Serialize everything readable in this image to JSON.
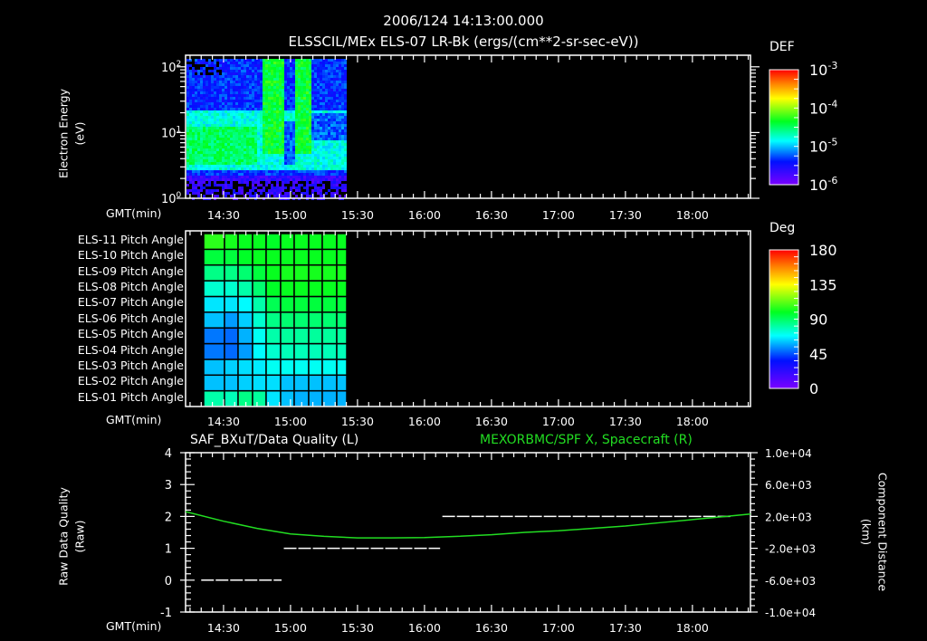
{
  "header": {
    "timestamp": "2006/124 14:13:00.000",
    "subtitle": "ELSSCIL/MEx ELS-07 LR-Bk  (ergs/(cm**2-sr-sec-eV))"
  },
  "time_axis": {
    "label": "GMT(min)",
    "ticks": [
      "14:30",
      "15:00",
      "15:30",
      "16:00",
      "16:30",
      "17:00",
      "17:30",
      "18:00"
    ],
    "start": "14:13",
    "end": "18:26"
  },
  "panel1": {
    "ylabel_line1": "Electron Energy",
    "ylabel_line2": "(eV)",
    "yticks": [
      "10^0",
      "10^1",
      "10^2"
    ],
    "colorbar": {
      "title": "DEF",
      "labels": [
        "10^-3",
        "10^-4",
        "10^-5",
        "10^-6"
      ]
    }
  },
  "panel2": {
    "rows": [
      "ELS-11 Pitch Angle",
      "ELS-10 Pitch Angle",
      "ELS-09 Pitch Angle",
      "ELS-08 Pitch Angle",
      "ELS-07 Pitch Angle",
      "ELS-06 Pitch Angle",
      "ELS-05 Pitch Angle",
      "ELS-04 Pitch Angle",
      "ELS-03 Pitch Angle",
      "ELS-02 Pitch Angle",
      "ELS-01 Pitch Angle"
    ],
    "colorbar": {
      "title": "Deg",
      "labels": [
        "180",
        "135",
        "90",
        "45",
        "0"
      ]
    }
  },
  "panel3": {
    "left_title": "SAF_BXuT/Data Quality (L)",
    "right_title": "MEXORBMC/SPF X, Spacecraft (R)",
    "left_ylabel_line1": "Raw Data Quality",
    "left_ylabel_line2": "(Raw)",
    "right_ylabel_line1": "Component Distance",
    "right_ylabel_line2": "(km)",
    "left_yticks": [
      "4",
      "3",
      "2",
      "1",
      "0",
      "-1"
    ],
    "right_yticks": [
      "1.0e+04",
      "6.0e+03",
      "2.0e+03",
      "-2.0e+03",
      "-6.0e+03",
      "-1.0e+04"
    ],
    "colors": {
      "quality": "#ffffff",
      "distance": "#22dd22"
    }
  },
  "chart_data": [
    {
      "type": "heatmap",
      "title": "ELSSCIL/MEx ELS-07 LR-Bk (ergs/(cm**2-sr-sec-eV))",
      "xlabel": "GMT(min)",
      "ylabel": "Electron Energy (eV)",
      "yscale": "log",
      "ylim": [
        1,
        150
      ],
      "x_range": [
        "14:13",
        "18:26"
      ],
      "data_extent": [
        "14:13",
        "15:24"
      ],
      "colorbar": {
        "label": "DEF",
        "scale": "log",
        "range": [
          1e-06,
          0.001
        ]
      },
      "features": [
        {
          "time": "14:13-14:45",
          "energy_eV": "3-20",
          "level": "~3e-5 (cyan/green)"
        },
        {
          "time": "14:48-14:56",
          "energy_eV": "5-150",
          "level": "~1e-4 (green)"
        },
        {
          "time": "15:03-15:08",
          "energy_eV": "5-150",
          "level": "~1e-4 (green)"
        },
        {
          "time": "15:10-15:24",
          "energy_eV": "3-10",
          "level": "~2e-5 (cyan)"
        }
      ]
    },
    {
      "type": "heatmap",
      "title": "ELS Pitch Angle",
      "xlabel": "GMT(min)",
      "categories": [
        "ELS-01",
        "ELS-02",
        "ELS-03",
        "ELS-04",
        "ELS-05",
        "ELS-06",
        "ELS-07",
        "ELS-08",
        "ELS-09",
        "ELS-10",
        "ELS-11"
      ],
      "colorbar": {
        "label": "Deg",
        "range": [
          0,
          180
        ]
      },
      "x_columns": [
        "14:21",
        "14:30",
        "14:37",
        "14:43",
        "14:49",
        "14:56",
        "15:02",
        "15:08",
        "15:15",
        "15:21"
      ],
      "values": [
        [
          80,
          78,
          85,
          82,
          65,
          60,
          58,
          58,
          58,
          58
        ],
        [
          60,
          60,
          62,
          64,
          64,
          60,
          60,
          60,
          60,
          60
        ],
        [
          60,
          62,
          64,
          66,
          70,
          70,
          70,
          70,
          70,
          70
        ],
        [
          50,
          48,
          55,
          68,
          75,
          78,
          78,
          78,
          78,
          78
        ],
        [
          50,
          48,
          58,
          70,
          80,
          82,
          82,
          82,
          82,
          82
        ],
        [
          60,
          55,
          62,
          75,
          85,
          88,
          88,
          88,
          88,
          88
        ],
        [
          65,
          65,
          68,
          80,
          92,
          95,
          95,
          95,
          95,
          95
        ],
        [
          75,
          75,
          80,
          88,
          98,
          100,
          100,
          100,
          100,
          100
        ],
        [
          85,
          85,
          88,
          95,
          100,
          102,
          102,
          102,
          102,
          102
        ],
        [
          95,
          95,
          98,
          100,
          100,
          100,
          100,
          100,
          100,
          100
        ],
        [
          105,
          102,
          100,
          100,
          98,
          100,
          100,
          100,
          100,
          100
        ]
      ]
    },
    {
      "type": "line",
      "title": "SAF_BXuT/Data Quality (L) ; MEXORBMC/SPF X, Spacecraft (R)",
      "xlabel": "GMT(min)",
      "x_range": [
        "14:13",
        "18:26"
      ],
      "series": [
        {
          "name": "SAF_BXuT/Data Quality (L)",
          "axis": "left",
          "ylim": [
            -1,
            4
          ],
          "style": "dashed",
          "segments": [
            {
              "x": [
                "14:20",
                "14:56"
              ],
              "y": 0
            },
            {
              "x": [
                "14:57",
                "16:07"
              ],
              "y": 1
            },
            {
              "x": [
                "16:08",
                "18:17"
              ],
              "y": 2
            }
          ]
        },
        {
          "name": "MEXORBMC/SPF X, Spacecraft (R)",
          "axis": "right",
          "ylim": [
            -10000,
            10000
          ],
          "x": [
            "14:13",
            "14:30",
            "14:45",
            "15:00",
            "15:15",
            "15:30",
            "15:45",
            "16:00",
            "16:15",
            "16:30",
            "16:45",
            "17:00",
            "17:15",
            "17:30",
            "17:45",
            "18:00",
            "18:15",
            "18:26"
          ],
          "values": [
            2600,
            1400,
            500,
            -200,
            -500,
            -700,
            -700,
            -650,
            -500,
            -300,
            0,
            200,
            500,
            800,
            1200,
            1600,
            2000,
            2300
          ]
        }
      ]
    }
  ]
}
